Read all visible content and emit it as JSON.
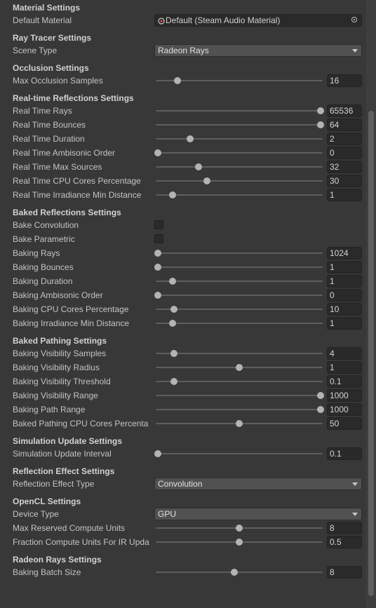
{
  "sections": [
    {
      "title": "Material Settings",
      "rows": [
        {
          "label": "Default Material",
          "kind": "object",
          "value": "Default (Steam Audio Material)"
        }
      ]
    },
    {
      "title": "Ray Tracer Settings",
      "rows": [
        {
          "label": "Scene Type",
          "kind": "dropdown",
          "value": "Radeon Rays"
        }
      ]
    },
    {
      "title": "Occlusion Settings",
      "rows": [
        {
          "label": "Max Occlusion Samples",
          "kind": "slider",
          "value": "16",
          "level": 0.12
        }
      ]
    },
    {
      "title": "Real-time Reflections Settings",
      "rows": [
        {
          "label": "Real Time Rays",
          "kind": "slider",
          "value": "65536",
          "level": 1.0
        },
        {
          "label": "Real Time Bounces",
          "kind": "slider",
          "value": "64",
          "level": 1.0
        },
        {
          "label": "Real Time Duration",
          "kind": "slider",
          "value": "2",
          "level": 0.2
        },
        {
          "label": "Real Time Ambisonic Order",
          "kind": "slider",
          "value": "0",
          "level": 0.0
        },
        {
          "label": "Real Time Max Sources",
          "kind": "slider",
          "value": "32",
          "level": 0.25
        },
        {
          "label": "Real Time CPU Cores Percentage",
          "kind": "slider",
          "value": "30",
          "level": 0.3
        },
        {
          "label": "Real Time Irradiance Min Distance",
          "kind": "slider",
          "value": "1",
          "level": 0.09
        }
      ]
    },
    {
      "title": "Baked Reflections Settings",
      "rows": [
        {
          "label": "Bake Convolution",
          "kind": "checkbox",
          "checked": false
        },
        {
          "label": "Bake Parametric",
          "kind": "checkbox",
          "checked": false
        },
        {
          "label": "Baking Rays",
          "kind": "slider",
          "value": "1024",
          "level": 0.0
        },
        {
          "label": "Baking Bounces",
          "kind": "slider",
          "value": "1",
          "level": 0.0
        },
        {
          "label": "Baking Duration",
          "kind": "slider",
          "value": "1",
          "level": 0.09
        },
        {
          "label": "Baking Ambisonic Order",
          "kind": "slider",
          "value": "0",
          "level": 0.0
        },
        {
          "label": "Baking CPU Cores Percentage",
          "kind": "slider",
          "value": "10",
          "level": 0.1
        },
        {
          "label": "Baking Irradiance Min Distance",
          "kind": "slider",
          "value": "1",
          "level": 0.09
        }
      ]
    },
    {
      "title": "Baked Pathing Settings",
      "rows": [
        {
          "label": "Baking Visibility Samples",
          "kind": "slider",
          "value": "4",
          "level": 0.1
        },
        {
          "label": "Baking Visibility Radius",
          "kind": "slider",
          "value": "1",
          "level": 0.5
        },
        {
          "label": "Baking Visibility Threshold",
          "kind": "slider",
          "value": "0.1",
          "level": 0.1
        },
        {
          "label": "Baking Visibility Range",
          "kind": "slider",
          "value": "1000",
          "level": 1.0
        },
        {
          "label": "Baking Path Range",
          "kind": "slider",
          "value": "1000",
          "level": 1.0
        },
        {
          "label": "Baked Pathing CPU Cores Percenta",
          "kind": "slider",
          "value": "50",
          "level": 0.5
        }
      ]
    },
    {
      "title": "Simulation Update Settings",
      "rows": [
        {
          "label": "Simulation Update Interval",
          "kind": "slider",
          "value": "0.1",
          "level": 0.0
        }
      ]
    },
    {
      "title": "Reflection Effect Settings",
      "rows": [
        {
          "label": "Reflection Effect Type",
          "kind": "dropdown",
          "value": "Convolution"
        }
      ]
    },
    {
      "title": "OpenCL Settings",
      "rows": [
        {
          "label": "Device Type",
          "kind": "dropdown",
          "value": "GPU"
        },
        {
          "label": "Max Reserved Compute Units",
          "kind": "slider",
          "value": "8",
          "level": 0.5
        },
        {
          "label": "Fraction Compute Units For IR Upda",
          "kind": "slider",
          "value": "0.5",
          "level": 0.5
        }
      ]
    },
    {
      "title": "Radeon Rays Settings",
      "rows": [
        {
          "label": "Baking Batch Size",
          "kind": "slider",
          "value": "8",
          "level": 0.47
        }
      ]
    }
  ],
  "colors": {
    "background": "#383838",
    "field": "#2a2a2a",
    "thumb": "#b3b3b3",
    "track": "#5e5e5e"
  }
}
